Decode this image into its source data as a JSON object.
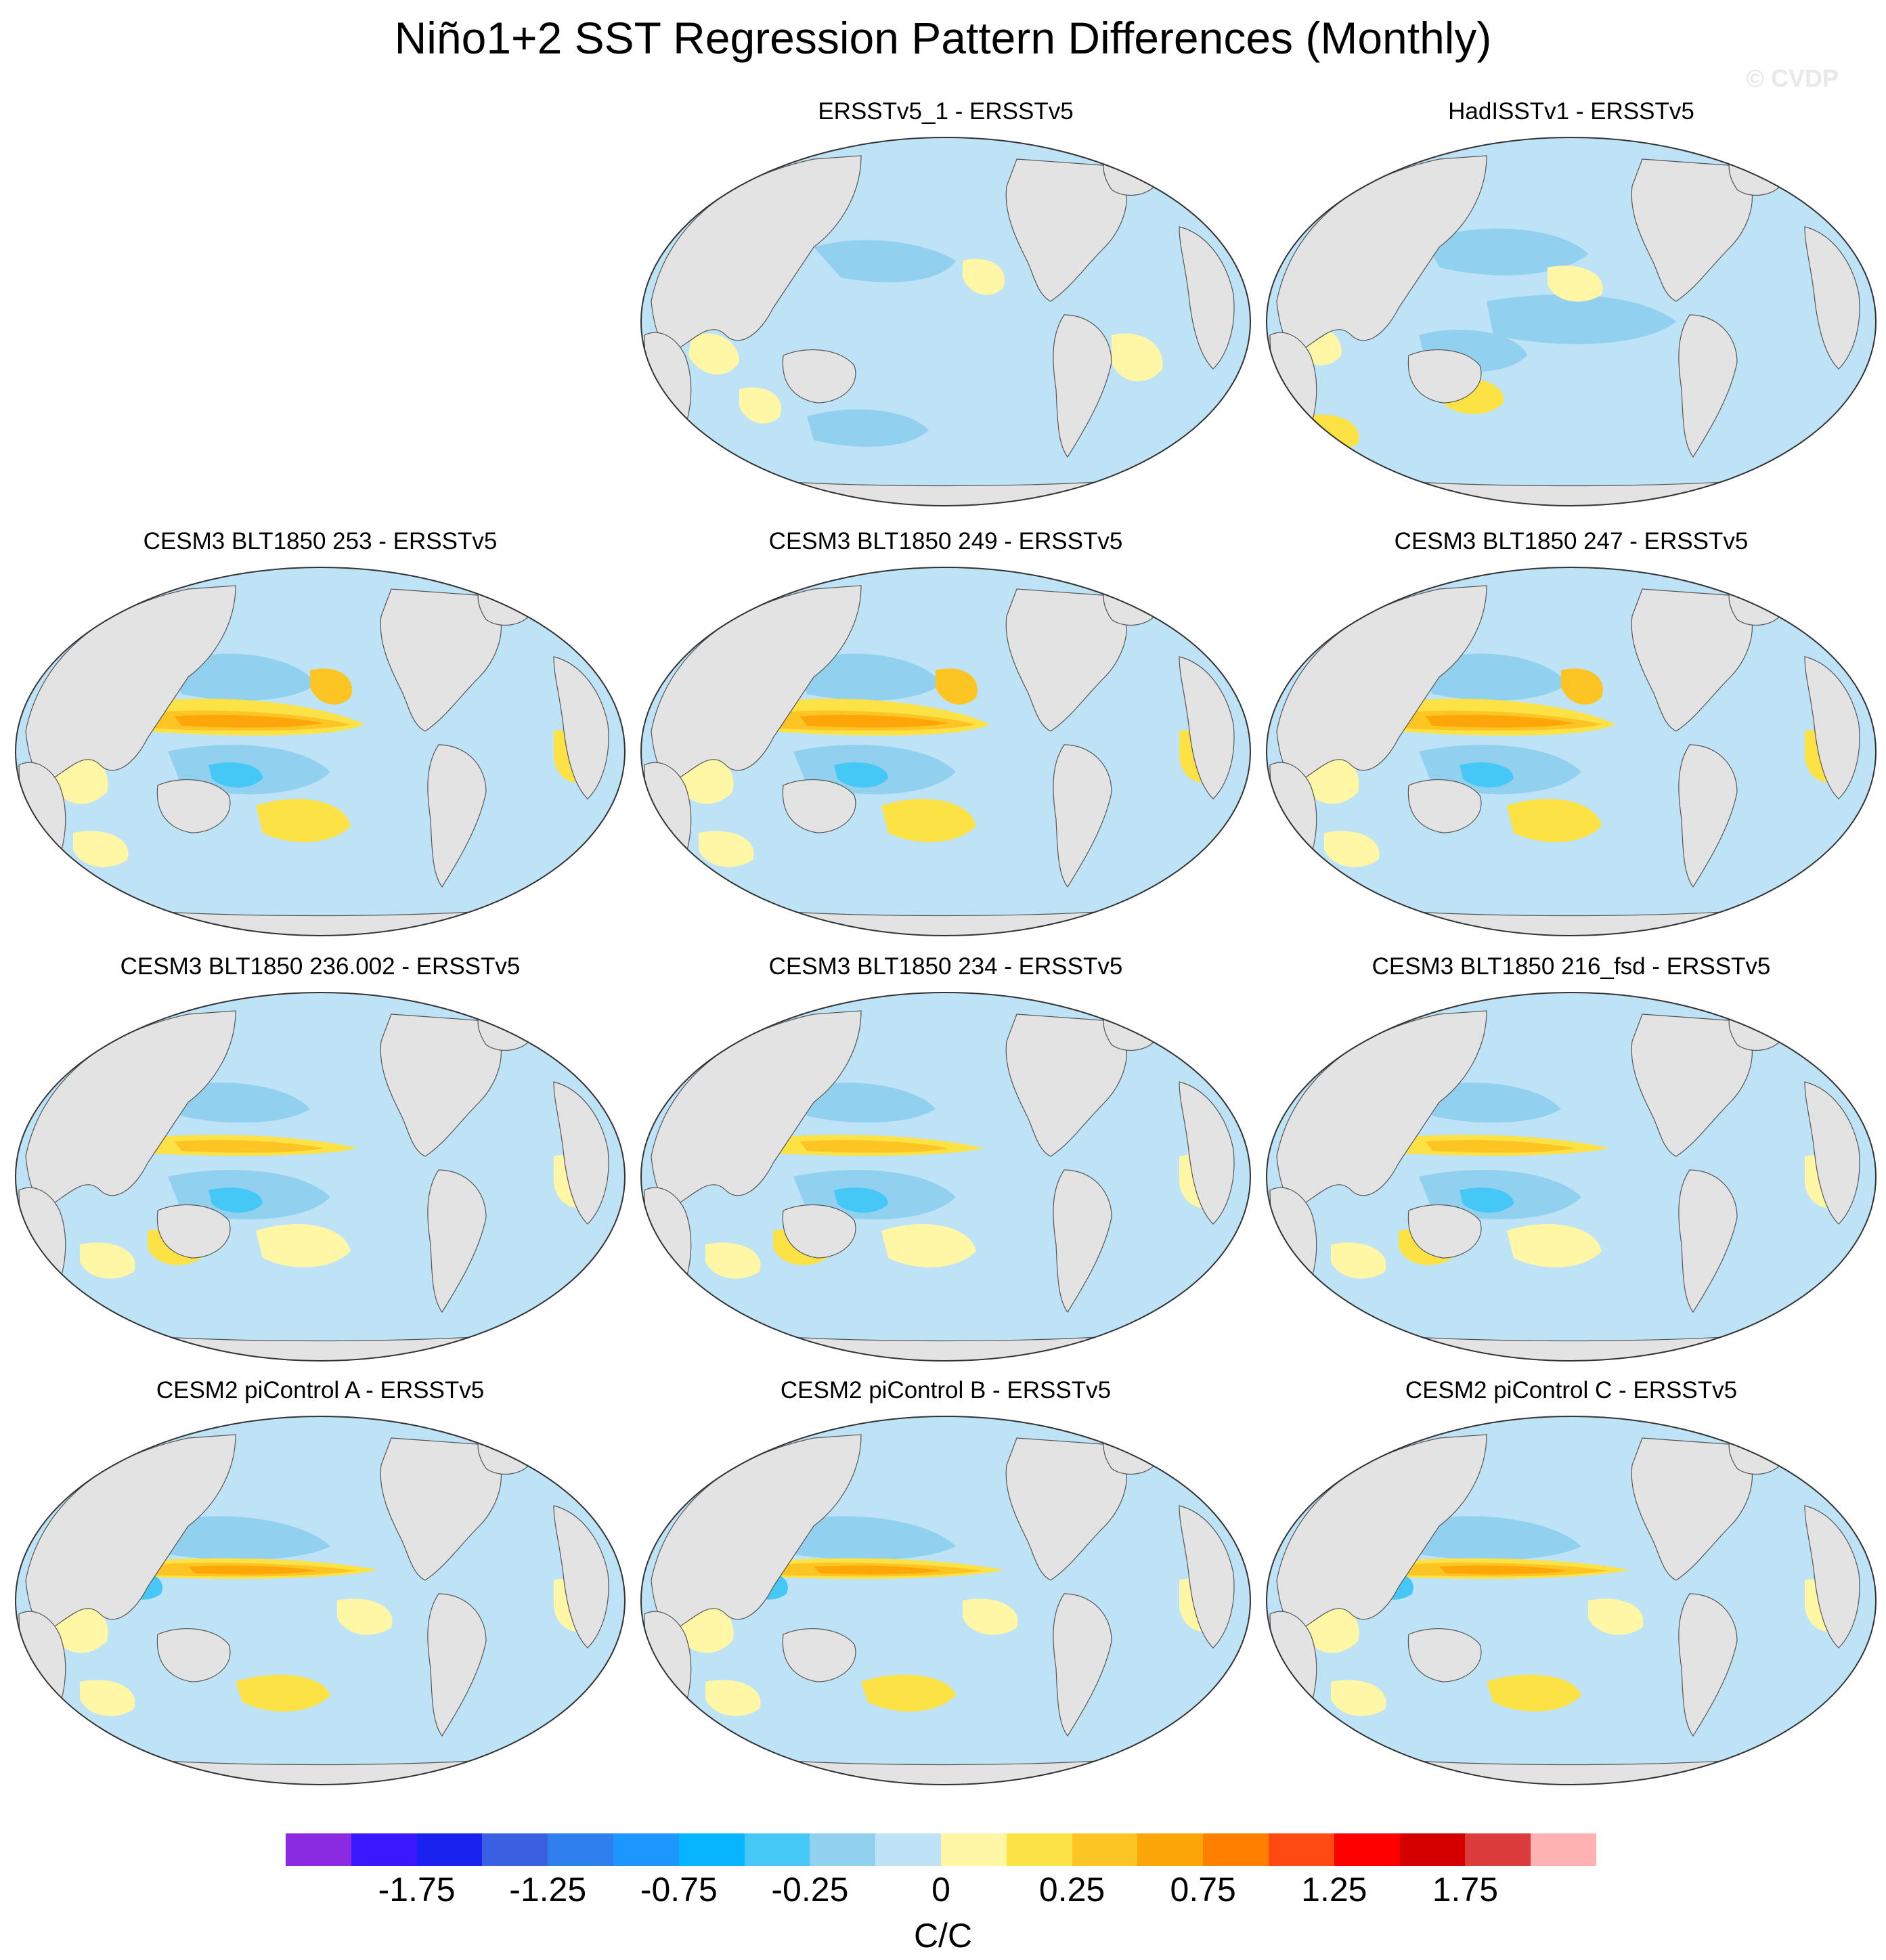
{
  "title": "Niño1+2 SST Regression Pattern Differences (Monthly)",
  "watermark": "© CVDP",
  "panels": [
    {
      "title": "ERSSTv5_1 - ERSSTv5",
      "pattern": "weak"
    },
    {
      "title": "HadISSTv1 - ERSSTv5",
      "pattern": "weak2"
    },
    {
      "title": "CESM3 BLT1850 253 - ERSSTv5",
      "pattern": "strong"
    },
    {
      "title": "CESM3 BLT1850 249 - ERSSTv5",
      "pattern": "strong"
    },
    {
      "title": "CESM3 BLT1850 247 - ERSSTv5",
      "pattern": "strong"
    },
    {
      "title": "CESM3 BLT1850 236.002 - ERSSTv5",
      "pattern": "medium"
    },
    {
      "title": "CESM3 BLT1850 234 - ERSSTv5",
      "pattern": "medium"
    },
    {
      "title": "CESM3 BLT1850 216_fsd - ERSSTv5",
      "pattern": "medium"
    },
    {
      "title": "CESM2 piControl A - ERSSTv5",
      "pattern": "cesm2"
    },
    {
      "title": "CESM2 piControl B - ERSSTv5",
      "pattern": "cesm2"
    },
    {
      "title": "CESM2 piControl C - ERSSTv5",
      "pattern": "cesm2"
    }
  ],
  "colorbar": {
    "colors": [
      "#8a2be2",
      "#3a18ff",
      "#1a22f0",
      "#3a5fe0",
      "#2f7fee",
      "#1e96ff",
      "#07b5ff",
      "#45c8f5",
      "#92d0f0",
      "#bfe3f6",
      "#fff7a6",
      "#fde246",
      "#fcc524",
      "#fca60a",
      "#ff8000",
      "#ff4a12",
      "#ff0000",
      "#d40000",
      "#dc3c3c",
      "#ffb2b2"
    ],
    "tick_labels": [
      "-1.75",
      "-1.25",
      "-0.75",
      "-0.25",
      "0",
      "0.25",
      "0.75",
      "1.25",
      "1.75"
    ],
    "units": "C/C"
  },
  "colors": {
    "land": "#e3e3e3",
    "neg_weak": "#bfe3f6",
    "neg_med": "#92d0f0",
    "neg_strong": "#45c8f5",
    "pos_weak": "#fff7a6",
    "pos_med": "#fde246",
    "pos_strong": "#fcc524",
    "pos_max": "#fca60a"
  }
}
